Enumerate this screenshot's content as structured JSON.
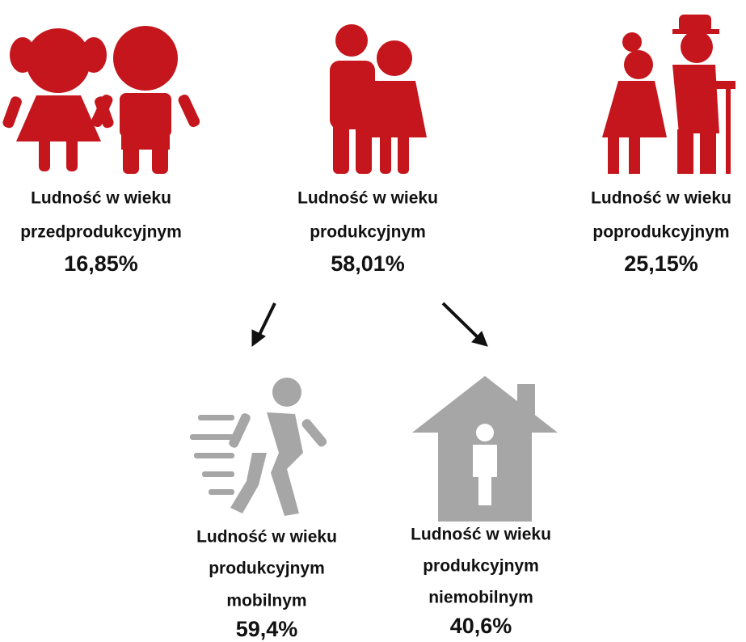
{
  "groups": [
    {
      "lines": [
        "Ludność w wieku",
        "przedprodukcyjnym"
      ],
      "value": "16,85%"
    },
    {
      "lines": [
        "Ludność w wieku",
        "produkcyjnym"
      ],
      "value": "58,01%"
    },
    {
      "lines": [
        "Ludność w wieku",
        "poprodukcyjnym"
      ],
      "value": "25,15%"
    },
    {
      "lines": [
        "Ludność w wieku",
        "produkcyjnym",
        "mobilnym"
      ],
      "value": "59,4%"
    },
    {
      "lines": [
        "Ludność w wieku",
        "produkcyjnym",
        "niemobilnym"
      ],
      "value": "40,6%"
    }
  ]
}
